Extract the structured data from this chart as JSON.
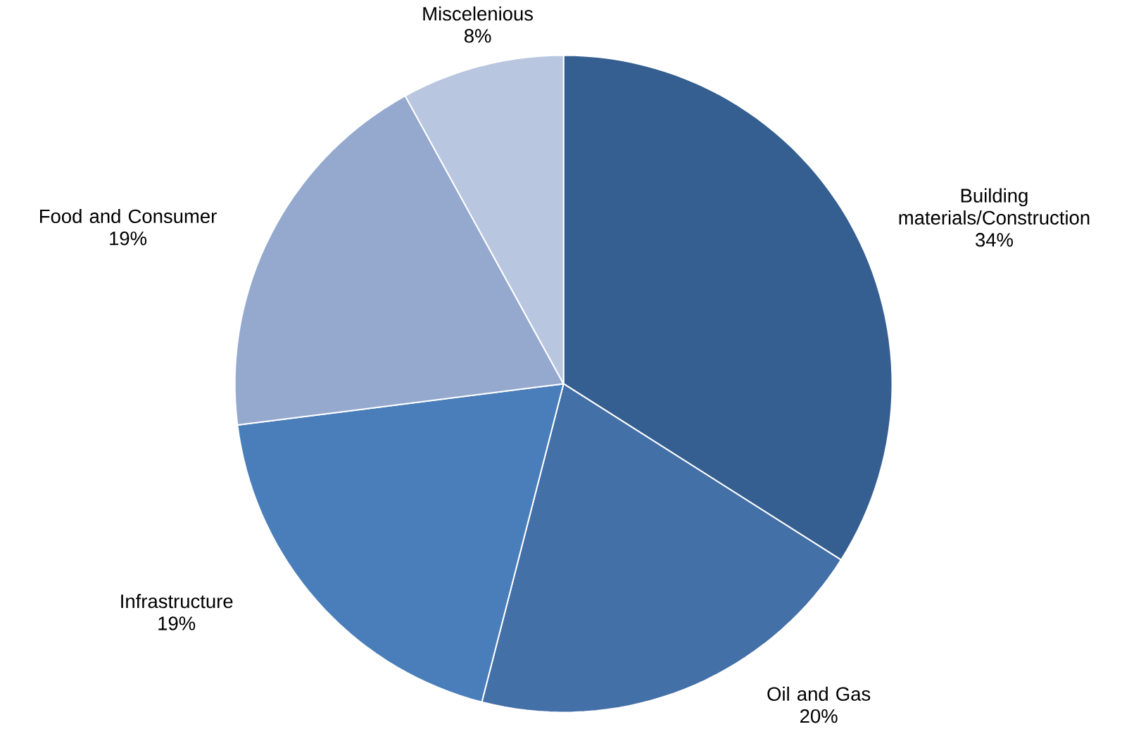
{
  "chart_data": {
    "type": "pie",
    "categories": [
      "Building materials/Construction",
      "Oil and Gas",
      "Infrastructure",
      "Food and Consumer",
      "Miscelenious"
    ],
    "values": [
      34,
      20,
      19,
      19,
      8
    ],
    "value_labels": [
      "34%",
      "20%",
      "19%",
      "19%",
      "8%"
    ],
    "colors": [
      "#355f91",
      "#4470a8",
      "#4a7ebb",
      "#95a9cf",
      "#b9c6e0"
    ]
  }
}
